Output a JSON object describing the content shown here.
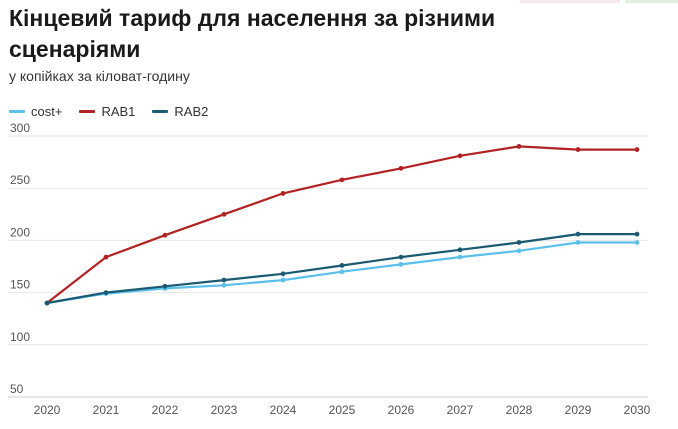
{
  "chart_data": {
    "type": "line",
    "title": "Кінцевий тариф для населення за різними сценаріями",
    "subtitle": "у копійках за кіловат-годину",
    "categories": [
      "2020",
      "2021",
      "2022",
      "2023",
      "2024",
      "2025",
      "2026",
      "2027",
      "2028",
      "2029",
      "2030"
    ],
    "ylim": [
      50,
      300
    ],
    "yticks": [
      50,
      100,
      150,
      200,
      250,
      300
    ],
    "grid": true,
    "legend_position": "top-left",
    "series": [
      {
        "name": "cost+",
        "color": "#5bc0eb",
        "values": [
          140,
          149,
          154,
          157,
          162,
          170,
          177,
          184,
          190,
          198,
          198
        ]
      },
      {
        "name": "RAB1",
        "color": "#b22222",
        "values": [
          140,
          184,
          205,
          225,
          245,
          258,
          269,
          281,
          290,
          287,
          287
        ]
      },
      {
        "name": "RAB2",
        "color": "#1b5a73",
        "values": [
          140,
          150,
          156,
          162,
          168,
          176,
          184,
          191,
          198,
          206,
          206
        ]
      }
    ]
  }
}
